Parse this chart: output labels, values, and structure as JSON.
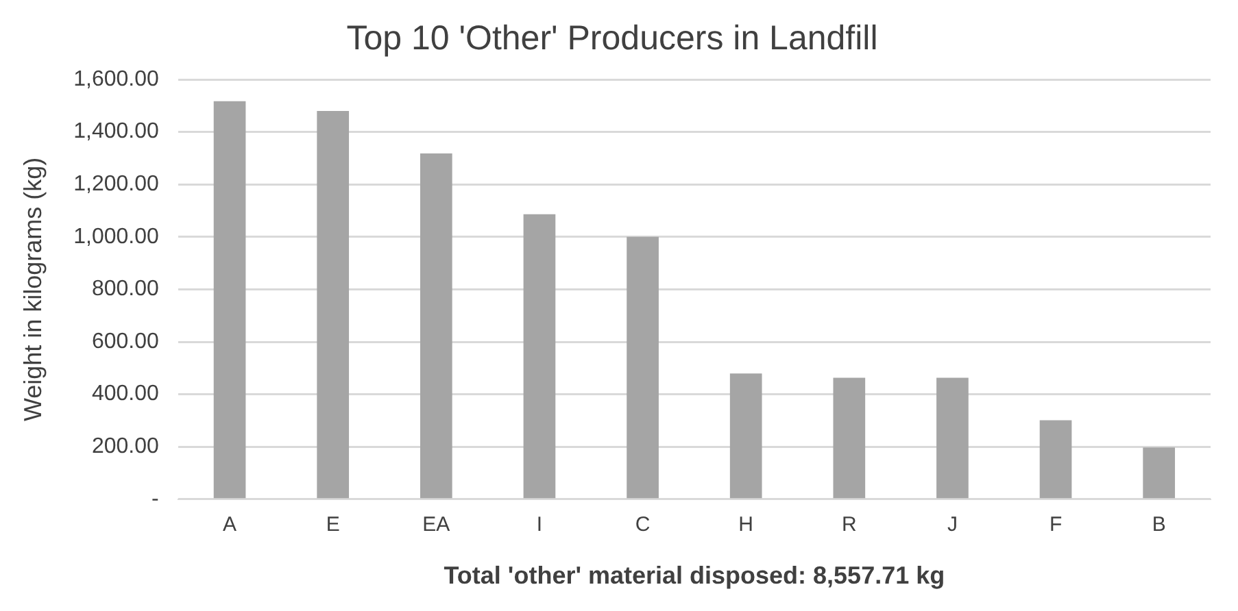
{
  "chart_data": {
    "type": "bar",
    "title": "Top 10 'Other' Producers in Landfill",
    "xlabel": "Total 'other' material disposed: 8,557.71 kg",
    "ylabel": "Weight in kilograms (kg)",
    "categories": [
      "A",
      "E",
      "EA",
      "I",
      "C",
      "H",
      "R",
      "J",
      "F",
      "B"
    ],
    "values": [
      1517,
      1480,
      1318,
      1086,
      1000,
      479,
      463,
      463,
      301,
      197
    ],
    "color": "#a5a5a5",
    "ylim": [
      0,
      1600
    ],
    "yticks": [
      {
        "value": 0,
        "label": "-"
      },
      {
        "value": 200,
        "label": "200.00"
      },
      {
        "value": 400,
        "label": "400.00"
      },
      {
        "value": 600,
        "label": "600.00"
      },
      {
        "value": 800,
        "label": "800.00"
      },
      {
        "value": 1000,
        "label": "1,000.00"
      },
      {
        "value": 1200,
        "label": "1,200.00"
      },
      {
        "value": 1400,
        "label": "1,400.00"
      },
      {
        "value": 1600,
        "label": "1,600.00"
      }
    ],
    "grid": "y",
    "legend": false
  }
}
